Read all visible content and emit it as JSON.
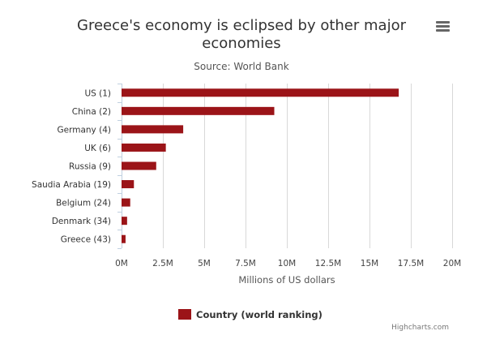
{
  "chart_data": {
    "type": "bar",
    "orientation": "horizontal",
    "title_lines": [
      "Greece's economy is eclipsed by other major",
      "economies"
    ],
    "subtitle": "Source: World Bank",
    "categories": [
      "US (1)",
      "China (2)",
      "Germany (4)",
      "UK (6)",
      "Russia (9)",
      "Saudia Arabia (19)",
      "Belgium (24)",
      "Denmark (34)",
      "Greece (43)"
    ],
    "series": [
      {
        "name": "Country (world ranking)",
        "color": "#9b1418",
        "values": [
          16768100,
          9240270,
          3730261,
          2678455,
          2096777,
          748450,
          524806,
          335878,
          242230
        ]
      }
    ],
    "xlim": [
      0,
      20000000
    ],
    "x_ticks": [
      0,
      2500000,
      5000000,
      7500000,
      10000000,
      12500000,
      15000000,
      17500000,
      20000000
    ],
    "x_tick_labels": [
      "0M",
      "2.5M",
      "5M",
      "7.5M",
      "10M",
      "12.5M",
      "15M",
      "17.5M",
      "20M"
    ],
    "value_axis_title": "Millions of US dollars",
    "grid": true,
    "legend_position": "bottom-center",
    "credits": "Highcharts.com"
  },
  "menu": {
    "icon": "hamburger-menu-icon"
  }
}
